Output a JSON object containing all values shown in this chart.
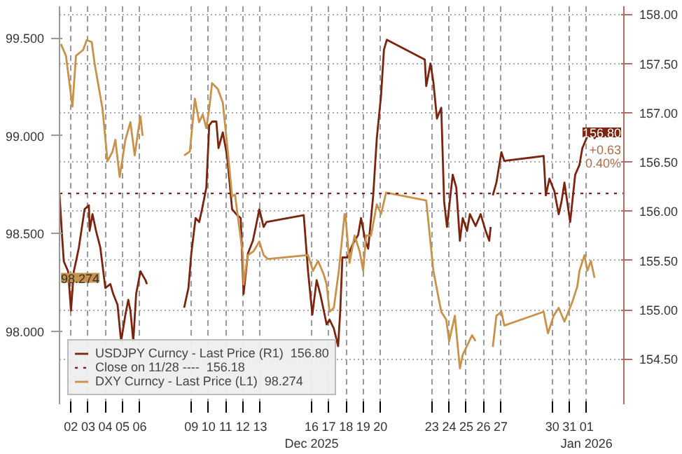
{
  "chart_data": {
    "type": "line",
    "xlim": [
      "2025-12-01T20:00",
      "2026-01-03T16:00"
    ],
    "xticks": [
      {
        "value": "2025-12-02T12:00",
        "label": "02"
      },
      {
        "value": "2025-12-03T12:00",
        "label": "03"
      },
      {
        "value": "2025-12-04T12:00",
        "label": "04"
      },
      {
        "value": "2025-12-05T12:00",
        "label": "05"
      },
      {
        "value": "2025-12-06T12:00",
        "label": "06"
      },
      {
        "value": "2025-12-09T12:00",
        "label": "09"
      },
      {
        "value": "2025-12-10T12:00",
        "label": "10"
      },
      {
        "value": "2025-12-11T12:00",
        "label": "11"
      },
      {
        "value": "2025-12-12T12:00",
        "label": "12"
      },
      {
        "value": "2025-12-13T12:00",
        "label": "13"
      },
      {
        "value": "2025-12-16T12:00",
        "label": "16\nDec 2025"
      },
      {
        "value": "2025-12-17T12:00",
        "label": "17"
      },
      {
        "value": "2025-12-18T12:00",
        "label": "18"
      },
      {
        "value": "2025-12-19T12:00",
        "label": "19"
      },
      {
        "value": "2025-12-20T12:00",
        "label": "20"
      },
      {
        "value": "2025-12-23T12:00",
        "label": "23"
      },
      {
        "value": "2025-12-24T12:00",
        "label": "24"
      },
      {
        "value": "2025-12-25T12:00",
        "label": "25"
      },
      {
        "value": "2025-12-26T12:00",
        "label": "26"
      },
      {
        "value": "2025-12-27T12:00",
        "label": "27"
      },
      {
        "value": "2025-12-30T12:00",
        "label": "30"
      },
      {
        "value": "2025-12-31T12:00",
        "label": "31"
      },
      {
        "value": "2026-01-01T12:00",
        "label": "01\nJan 2026"
      }
    ],
    "ylim": [
      97.627,
      99.663
    ],
    "yticks": [
      {
        "value": 98.0,
        "label": "98.000"
      },
      {
        "value": 98.5,
        "label": "98.500"
      },
      {
        "value": 99.0,
        "label": "99.000"
      },
      {
        "value": 99.5,
        "label": "99.500"
      }
    ],
    "y2lim": [
      154.04,
      158.08
    ],
    "y2ticks": [
      {
        "value": 154.5,
        "label": "154.50"
      },
      {
        "value": 155.0,
        "label": "155.00"
      },
      {
        "value": 155.5,
        "label": "155.50"
      },
      {
        "value": 156.0,
        "label": "156.00"
      },
      {
        "value": 156.5,
        "label": "156.50"
      },
      {
        "value": 157.0,
        "label": "157.00"
      },
      {
        "value": 157.5,
        "label": "157.50"
      },
      {
        "value": 158.0,
        "label": "158.00"
      }
    ],
    "grid": true,
    "legend": "bottom left",
    "series": [
      {
        "name": "USDJPY Curncy - Last Price (R1)  156.80",
        "color": "#7b2410",
        "axis": "y2",
        "x": [
          "2025-12-01T20:00",
          "2025-12-02T00:00",
          "2025-12-02T02:00",
          "2025-12-02T08:00",
          "2025-12-02T12:00",
          "2025-12-02T16:00",
          "2025-12-02T19:00",
          "2025-12-02T23:00",
          "2025-12-03T07:00",
          "2025-12-03T13:00",
          "2025-12-03T14:00",
          "2025-12-03T18:00",
          "2025-12-03T23:00",
          "2025-12-04T05:00",
          "2025-12-04T12:00",
          "2025-12-04T19:00",
          "2025-12-04T23:00",
          "2025-12-05T05:00",
          "2025-12-05T10:00",
          "2025-12-05T16:00",
          "2025-12-05T20:00",
          "2025-12-05T23:00",
          "2025-12-06T03:00",
          "2025-12-06T07:00",
          "2025-12-06T13:00",
          "2025-12-06T20:00",
          "2025-12-06T22:00",
          "2025-12-06T23:00",
          "2025-12-09T02:00",
          "2025-12-09T08:00",
          "2025-12-09T12:00",
          "2025-12-09T18:00",
          "2025-12-09T23:00",
          "2025-12-10T03:00",
          "2025-12-10T09:00",
          "2025-12-10T13:00",
          "2025-12-10T17:00",
          "2025-12-10T23:00",
          "2025-12-11T02:00",
          "2025-12-11T08:00",
          "2025-12-11T14:00",
          "2025-12-11T21:00",
          "2025-12-12T04:00",
          "2025-12-12T09:00",
          "2025-12-12T13:00",
          "2025-12-12T19:00",
          "2025-12-13T02:00",
          "2025-12-13T06:00",
          "2025-12-13T11:00",
          "2025-12-13T17:00",
          "2025-12-13T21:00",
          "2025-12-16T01:00",
          "2025-12-16T07:00",
          "2025-12-16T13:00",
          "2025-12-16T19:00",
          "2025-12-17T00:00",
          "2025-12-17T05:00",
          "2025-12-17T09:00",
          "2025-12-17T13:00",
          "2025-12-17T19:00",
          "2025-12-18T01:00",
          "2025-12-18T04:00",
          "2025-12-18T07:00",
          "2025-12-18T14:00",
          "2025-12-18T21:00",
          "2025-12-19T05:00",
          "2025-12-19T09:00",
          "2025-12-19T15:00",
          "2025-12-19T19:00",
          "2025-12-20T02:00",
          "2025-12-20T07:00",
          "2025-12-20T13:00",
          "2025-12-20T17:00",
          "2025-12-20T21:00",
          "2025-12-23T02:00",
          "2025-12-23T04:00",
          "2025-12-23T10:00",
          "2025-12-23T14:00",
          "2025-12-23T19:00",
          "2025-12-24T01:00",
          "2025-12-24T05:00",
          "2025-12-24T09:00",
          "2025-12-24T17:00",
          "2025-12-24T22:00",
          "2025-12-25T03:00",
          "2025-12-25T07:00",
          "2025-12-25T13:00",
          "2025-12-25T17:00",
          "2025-12-26T01:00",
          "2025-12-26T08:00",
          "2025-12-26T15:00",
          "2025-12-26T20:00",
          "2025-12-26T22:00",
          "2025-12-26T23:00",
          "2025-12-27T01:00",
          "2025-12-27T06:00",
          "2025-12-27T13:00",
          "2025-12-27T17:00",
          "2025-12-30T00:00",
          "2025-12-30T03:00",
          "2025-12-30T08:00",
          "2025-12-30T15:00",
          "2025-12-30T21:00",
          "2025-12-31T01:00",
          "2025-12-31T05:00",
          "2025-12-31T13:00",
          "2025-12-31T20:00",
          "2026-01-01T02:00",
          "2026-01-01T06:00",
          "2026-01-01T13:00",
          "2026-01-01T18:00",
          "2026-01-01T23:00",
          "2026-01-02T04:00"
        ],
        "values": [
          156.17,
          155.7,
          155.49,
          155.39,
          154.99,
          155.39,
          155.49,
          155.63,
          156.02,
          156.06,
          155.8,
          155.97,
          155.8,
          155.63,
          155.22,
          155.26,
          155.16,
          155.05,
          154.68,
          154.95,
          155.1,
          154.99,
          154.68,
          155.16,
          155.39,
          155.3,
          155.26,
          null,
          155.02,
          155.22,
          155.57,
          155.93,
          155.89,
          156.02,
          156.24,
          156.87,
          156.91,
          156.91,
          156.64,
          156.8,
          156.56,
          156.02,
          155.96,
          155.93,
          155.16,
          155.57,
          155.7,
          155.84,
          156.02,
          155.84,
          155.89,
          155.96,
          155.39,
          154.95,
          155.3,
          155.16,
          154.99,
          154.85,
          154.9,
          154.81,
          154.63,
          154.99,
          155.53,
          155.53,
          155.66,
          155.76,
          155.93,
          155.7,
          155.62,
          156.16,
          156.74,
          157.18,
          157.64,
          157.74,
          157.54,
          157.27,
          157.5,
          157.31,
          156.94,
          157.05,
          156.1,
          155.84,
          156.37,
          156.24,
          155.7,
          155.93,
          155.8,
          155.97,
          155.85,
          155.97,
          155.8,
          155.7,
          155.84,
          null,
          156.16,
          156.29,
          156.6,
          156.51,
          156.56,
          156.16,
          156.33,
          156.2,
          155.97,
          156.1,
          156.29,
          155.89,
          156.37,
          156.47,
          156.64,
          156.76,
          156.84,
          156.74,
          156.8
        ]
      },
      {
        "name": "DXY Curncy - Last Price (L1)  98.274",
        "color": "#c8924a",
        "x": [
          "2025-12-01T22:00",
          "2025-12-02T05:00",
          "2025-12-02T14:00",
          "2025-12-02T19:00",
          "2025-12-03T05:00",
          "2025-12-03T10:00",
          "2025-12-03T17:00",
          "2025-12-03T21:00",
          "2025-12-04T08:00",
          "2025-12-04T15:00",
          "2025-12-04T22:00",
          "2025-12-05T02:00",
          "2025-12-05T08:00",
          "2025-12-05T16:00",
          "2025-12-05T23:00",
          "2025-12-06T05:00",
          "2025-12-06T10:00",
          "2025-12-06T13:00",
          "2025-12-06T16:00",
          "2025-12-06T19:00",
          "2025-12-09T02:00",
          "2025-12-09T10:00",
          "2025-12-09T17:00",
          "2025-12-09T23:00",
          "2025-12-10T04:00",
          "2025-12-10T09:00",
          "2025-12-10T13:00",
          "2025-12-10T17:00",
          "2025-12-11T01:00",
          "2025-12-11T08:00",
          "2025-12-11T15:00",
          "2025-12-11T21:00",
          "2025-12-12T01:00",
          "2025-12-12T12:00",
          "2025-12-12T13:00",
          "2025-12-12T19:00",
          "2025-12-13T03:00",
          "2025-12-13T11:00",
          "2025-12-13T17:00",
          "2025-12-13T23:00",
          "2025-12-16T07:00",
          "2025-12-16T14:00",
          "2025-12-16T21:00",
          "2025-12-17T05:00",
          "2025-12-17T09:00",
          "2025-12-17T13:00",
          "2025-12-17T19:00",
          "2025-12-18T02:00",
          "2025-12-18T10:00",
          "2025-12-18T11:00",
          "2025-12-18T17:00",
          "2025-12-19T00:00",
          "2025-12-19T07:00",
          "2025-12-19T12:00",
          "2025-12-19T16:00",
          "2025-12-19T23:00",
          "2025-12-20T07:00",
          "2025-12-20T13:00",
          "2025-12-20T20:00",
          "2025-12-23T04:00",
          "2025-12-23T14:00",
          "2025-12-24T01:00",
          "2025-12-24T08:00",
          "2025-12-24T12:00",
          "2025-12-24T20:00",
          "2025-12-25T03:00",
          "2025-12-25T07:00",
          "2025-12-25T20:00",
          "2025-12-26T01:00",
          "2025-12-26T07:00",
          "2025-12-27T01:00",
          "2025-12-27T06:00",
          "2025-12-27T13:00",
          "2025-12-27T17:00",
          "2025-12-30T00:00",
          "2025-12-30T06:00",
          "2025-12-30T14:00",
          "2025-12-30T21:00",
          "2025-12-31T05:00",
          "2025-12-31T16:00",
          "2025-12-31T23:00",
          "2026-01-01T02:00",
          "2026-01-01T09:00",
          "2026-01-01T13:00",
          "2026-01-01T18:00",
          "2026-01-01T23:00"
        ],
        "values": [
          99.47,
          99.41,
          99.15,
          99.41,
          99.44,
          99.49,
          99.48,
          99.37,
          99.14,
          98.87,
          98.92,
          98.98,
          98.79,
          98.98,
          99.07,
          98.9,
          99.03,
          99.1,
          99.0,
          null,
          98.9,
          98.92,
          99.19,
          99.07,
          99.11,
          99.04,
          99.14,
          99.27,
          99.24,
          99.17,
          98.92,
          98.69,
          98.7,
          98.39,
          98.24,
          98.39,
          98.41,
          98.46,
          98.39,
          98.37,
          98.39,
          98.31,
          98.36,
          98.29,
          98.24,
          98.1,
          98.12,
          98.31,
          98.6,
          98.6,
          98.35,
          98.49,
          98.41,
          98.31,
          98.49,
          98.49,
          98.65,
          98.6,
          98.71,
          98.67,
          98.31,
          98.1,
          98.06,
          97.95,
          98.08,
          97.81,
          97.88,
          97.98,
          97.95,
          null,
          97.92,
          98.08,
          98.1,
          98.03,
          98.1,
          97.99,
          98.08,
          98.12,
          98.05,
          98.15,
          98.23,
          98.31,
          98.39,
          98.31,
          98.36,
          98.274
        ]
      }
    ],
    "ref_lines": [
      {
        "axis": "y2",
        "value": 156.18,
        "label": "Close on 11/28 ----  156.18",
        "color": "#8b1a1a",
        "line_style": "dotted"
      }
    ],
    "annotations": [
      "156.80",
      "+0.63",
      "0.40%",
      "98.274"
    ]
  }
}
